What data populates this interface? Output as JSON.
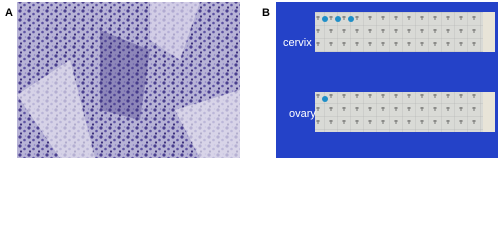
{
  "panels": [
    {
      "label": "A"
    },
    {
      "label": "B",
      "strips": [
        {
          "label": "cervix"
        },
        {
          "label": "ovary"
        }
      ]
    }
  ]
}
